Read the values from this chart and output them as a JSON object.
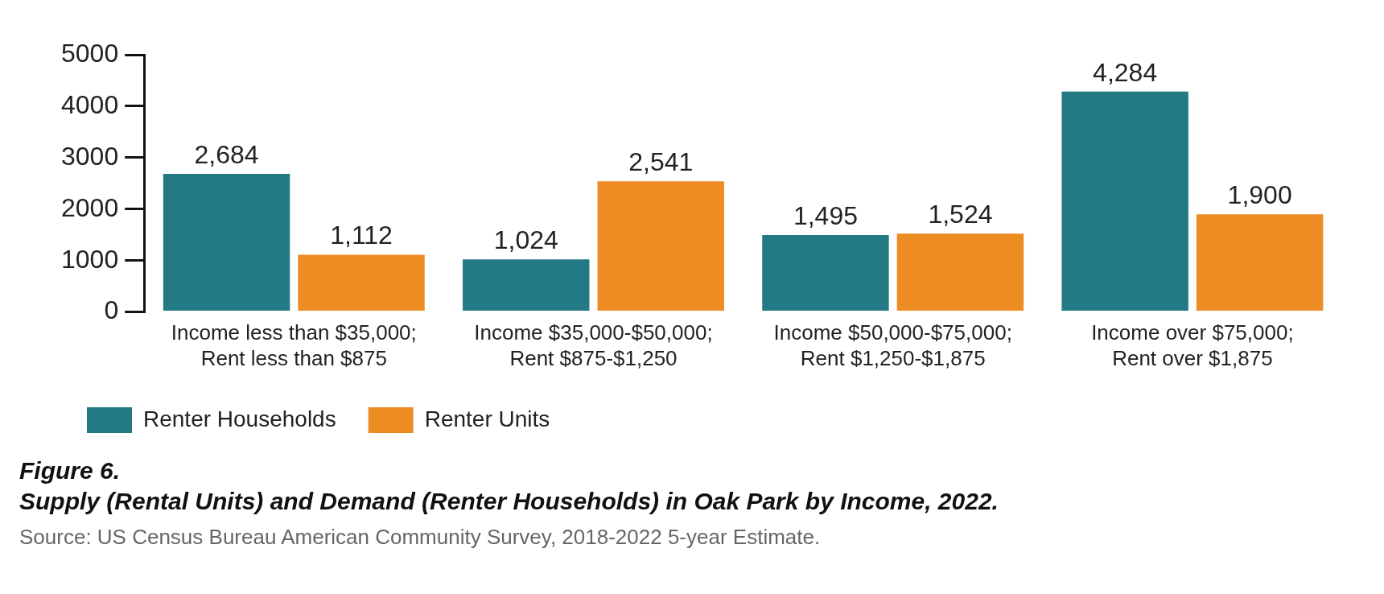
{
  "chart_data": {
    "type": "bar",
    "title": "Figure 6.",
    "subtitle": "Supply (Rental Units) and Demand (Renter Households) in Oak Park by Income, 2022.",
    "annotations": [
      "Source: US Census Bureau American Community Survey, 2018-2022 5-year Estimate."
    ],
    "categories": [
      "Income less than $35,000; Rent less than $875",
      "Income $35,000-$50,000; Rent $875-$1,250",
      "Income $50,000-$75,000; Rent $1,250-$1,875",
      "Income over $75,000; Rent over $1,875"
    ],
    "series": [
      {
        "name": "Renter Households",
        "color": "#237a85",
        "values": [
          2684,
          1024,
          1495,
          4284
        ],
        "value_labels": [
          "2,684",
          "1,024",
          "1,495",
          "4,284"
        ]
      },
      {
        "name": "Renter Units",
        "color": "#ee8c24",
        "values": [
          1112,
          2541,
          1524,
          1900
        ],
        "value_labels": [
          "1,112",
          "2,541",
          "1,524",
          "1,900"
        ]
      }
    ],
    "ylim": [
      0,
      5000
    ],
    "yticks": [
      0,
      1000,
      2000,
      3000,
      4000,
      5000
    ],
    "grid": false,
    "legend": "bottom left"
  }
}
